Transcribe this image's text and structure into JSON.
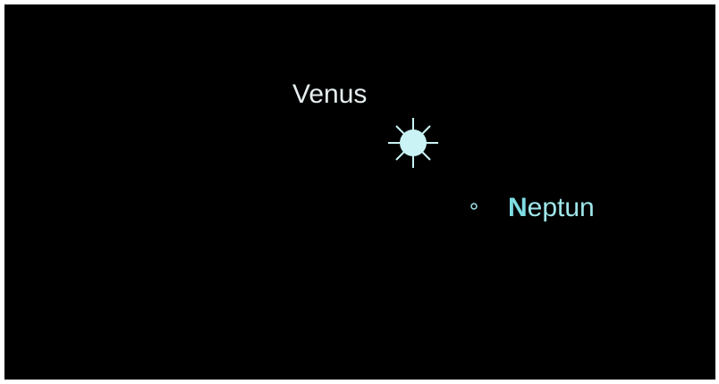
{
  "labels": {
    "venus": "Venus",
    "neptune": "Neptun"
  }
}
